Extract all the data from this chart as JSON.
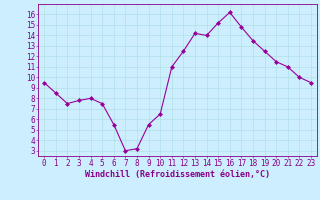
{
  "hours": [
    0,
    1,
    2,
    3,
    4,
    5,
    6,
    7,
    8,
    9,
    10,
    11,
    12,
    13,
    14,
    15,
    16,
    17,
    18,
    19,
    20,
    21,
    22,
    23
  ],
  "values": [
    9.5,
    8.5,
    7.5,
    7.8,
    8.0,
    7.5,
    5.5,
    3.0,
    3.2,
    5.5,
    6.5,
    11.0,
    12.5,
    14.2,
    14.0,
    15.2,
    16.2,
    14.8,
    13.5,
    12.5,
    11.5,
    11.0,
    10.0,
    9.5
  ],
  "line_color": "#990099",
  "marker": "D",
  "marker_size": 2.0,
  "bg_color": "#cceeff",
  "grid_color": "#aadddd",
  "axis_color": "#880088",
  "ylabel_vals": [
    3,
    4,
    5,
    6,
    7,
    8,
    9,
    10,
    11,
    12,
    13,
    14,
    15,
    16
  ],
  "ylim": [
    2.5,
    17.0
  ],
  "xlim": [
    -0.5,
    23.5
  ],
  "xlabel": "Windchill (Refroidissement éolien,°C)",
  "xlabel_fontsize": 6.0,
  "tick_fontsize": 5.5,
  "linewidth": 0.8
}
